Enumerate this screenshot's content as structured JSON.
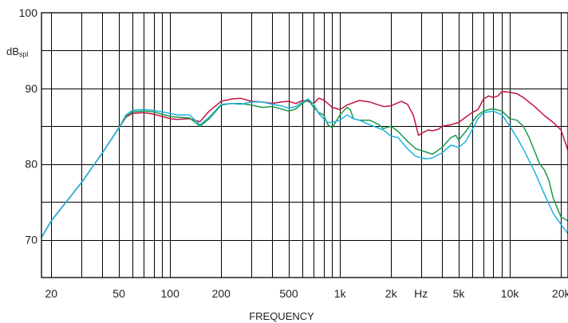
{
  "chart_data": {
    "type": "line",
    "title": "",
    "xlabel": "FREQUENCY",
    "x_scale": "log",
    "xlim": [
      17.5,
      22000
    ],
    "ylim": [
      65,
      100
    ],
    "y_unit": {
      "main": "dB",
      "sub": "spl"
    },
    "grid": true,
    "x_ticks": [
      {
        "value": 20,
        "label": "20"
      },
      {
        "value": 50,
        "label": "50"
      },
      {
        "value": 100,
        "label": "100"
      },
      {
        "value": 200,
        "label": "200"
      },
      {
        "value": 500,
        "label": "500"
      },
      {
        "value": 1000,
        "label": "1k"
      },
      {
        "value": 2000,
        "label": "2k"
      },
      {
        "value": 3000,
        "label": "Hz"
      },
      {
        "value": 5000,
        "label": "5k"
      },
      {
        "value": 10000,
        "label": "10k"
      },
      {
        "value": 20000,
        "label": "20k"
      }
    ],
    "y_ticks": [
      {
        "value": 100,
        "label": "100"
      },
      {
        "value": 90,
        "label": "90"
      },
      {
        "value": 80,
        "label": "80"
      },
      {
        "value": 70,
        "label": "70"
      }
    ],
    "series": [
      {
        "color": "#c0143c",
        "points": [
          [
            17.5,
            70.3
          ],
          [
            20,
            72.5
          ],
          [
            30,
            77.5
          ],
          [
            40,
            81.5
          ],
          [
            50,
            84.8
          ],
          [
            55,
            86.2
          ],
          [
            60,
            86.7
          ],
          [
            70,
            86.8
          ],
          [
            80,
            86.6
          ],
          [
            90,
            86.3
          ],
          [
            100,
            86.0
          ],
          [
            110,
            85.9
          ],
          [
            130,
            86.0
          ],
          [
            150,
            85.6
          ],
          [
            170,
            87.0
          ],
          [
            200,
            88.3
          ],
          [
            230,
            88.6
          ],
          [
            260,
            88.7
          ],
          [
            300,
            88.3
          ],
          [
            350,
            88.2
          ],
          [
            400,
            88.0
          ],
          [
            450,
            88.2
          ],
          [
            500,
            88.3
          ],
          [
            550,
            88.0
          ],
          [
            600,
            88.4
          ],
          [
            650,
            88.3
          ],
          [
            700,
            88.0
          ],
          [
            750,
            88.7
          ],
          [
            800,
            88.5
          ],
          [
            900,
            87.5
          ],
          [
            1000,
            87.2
          ],
          [
            1100,
            87.8
          ],
          [
            1300,
            88.4
          ],
          [
            1500,
            88.2
          ],
          [
            1800,
            87.6
          ],
          [
            2000,
            87.7
          ],
          [
            2300,
            88.3
          ],
          [
            2500,
            87.9
          ],
          [
            2700,
            86.5
          ],
          [
            2900,
            83.8
          ],
          [
            3100,
            84.2
          ],
          [
            3300,
            84.5
          ],
          [
            3500,
            84.4
          ],
          [
            3800,
            84.6
          ],
          [
            4000,
            85.0
          ],
          [
            4500,
            85.2
          ],
          [
            5000,
            85.5
          ],
          [
            5500,
            86.2
          ],
          [
            6000,
            86.8
          ],
          [
            6500,
            87.2
          ],
          [
            7000,
            88.6
          ],
          [
            7500,
            89.0
          ],
          [
            8000,
            88.8
          ],
          [
            8500,
            89.0
          ],
          [
            9000,
            89.6
          ],
          [
            10000,
            89.5
          ],
          [
            11000,
            89.3
          ],
          [
            12000,
            88.8
          ],
          [
            14000,
            87.6
          ],
          [
            16000,
            86.4
          ],
          [
            18000,
            85.5
          ],
          [
            20000,
            84.5
          ],
          [
            22000,
            81.8
          ]
        ]
      },
      {
        "color": "#1a9a4a",
        "points": [
          [
            17.5,
            70.3
          ],
          [
            20,
            72.5
          ],
          [
            30,
            77.5
          ],
          [
            40,
            81.5
          ],
          [
            50,
            84.8
          ],
          [
            55,
            86.3
          ],
          [
            60,
            86.9
          ],
          [
            70,
            87.0
          ],
          [
            80,
            86.9
          ],
          [
            90,
            86.6
          ],
          [
            100,
            86.3
          ],
          [
            110,
            86.2
          ],
          [
            130,
            86.1
          ],
          [
            150,
            85.0
          ],
          [
            170,
            86.0
          ],
          [
            200,
            87.8
          ],
          [
            230,
            88.0
          ],
          [
            260,
            88.0
          ],
          [
            300,
            87.8
          ],
          [
            350,
            87.5
          ],
          [
            400,
            87.6
          ],
          [
            450,
            87.3
          ],
          [
            500,
            87.0
          ],
          [
            550,
            87.3
          ],
          [
            600,
            88.0
          ],
          [
            650,
            88.5
          ],
          [
            700,
            87.5
          ],
          [
            750,
            86.8
          ],
          [
            800,
            86.5
          ],
          [
            850,
            85.2
          ],
          [
            900,
            84.8
          ],
          [
            1000,
            86.5
          ],
          [
            1100,
            87.5
          ],
          [
            1150,
            87.2
          ],
          [
            1200,
            86.0
          ],
          [
            1300,
            85.8
          ],
          [
            1500,
            85.8
          ],
          [
            1700,
            85.2
          ],
          [
            1800,
            84.7
          ],
          [
            2000,
            85.0
          ],
          [
            2200,
            84.3
          ],
          [
            2500,
            83.0
          ],
          [
            2800,
            82.0
          ],
          [
            3200,
            81.6
          ],
          [
            3500,
            81.3
          ],
          [
            4000,
            82.2
          ],
          [
            4500,
            83.5
          ],
          [
            4800,
            83.8
          ],
          [
            5000,
            83.2
          ],
          [
            5500,
            84.3
          ],
          [
            6000,
            85.5
          ],
          [
            6500,
            86.5
          ],
          [
            7000,
            87.0
          ],
          [
            7500,
            87.2
          ],
          [
            8000,
            87.3
          ],
          [
            9000,
            87.0
          ],
          [
            10000,
            86.0
          ],
          [
            11000,
            85.8
          ],
          [
            12000,
            85.0
          ],
          [
            13000,
            83.5
          ],
          [
            15000,
            80.0
          ],
          [
            16000,
            79.2
          ],
          [
            17000,
            77.8
          ],
          [
            18000,
            75.5
          ],
          [
            20000,
            73.0
          ],
          [
            22000,
            72.5
          ]
        ]
      },
      {
        "color": "#1ab4e0",
        "points": [
          [
            17.5,
            70.3
          ],
          [
            20,
            72.5
          ],
          [
            30,
            77.5
          ],
          [
            40,
            81.5
          ],
          [
            50,
            84.8
          ],
          [
            55,
            86.5
          ],
          [
            60,
            87.1
          ],
          [
            70,
            87.2
          ],
          [
            80,
            87.1
          ],
          [
            90,
            86.9
          ],
          [
            100,
            86.7
          ],
          [
            110,
            86.5
          ],
          [
            130,
            86.5
          ],
          [
            150,
            85.2
          ],
          [
            170,
            86.2
          ],
          [
            200,
            87.9
          ],
          [
            230,
            88.0
          ],
          [
            260,
            87.9
          ],
          [
            300,
            88.2
          ],
          [
            350,
            88.2
          ],
          [
            400,
            87.9
          ],
          [
            450,
            87.7
          ],
          [
            500,
            87.4
          ],
          [
            550,
            87.6
          ],
          [
            600,
            88.2
          ],
          [
            650,
            88.6
          ],
          [
            700,
            87.9
          ],
          [
            750,
            86.7
          ],
          [
            800,
            86.0
          ],
          [
            850,
            85.5
          ],
          [
            900,
            85.5
          ],
          [
            1000,
            85.8
          ],
          [
            1100,
            86.5
          ],
          [
            1200,
            86.0
          ],
          [
            1300,
            85.8
          ],
          [
            1500,
            85.2
          ],
          [
            1800,
            84.5
          ],
          [
            2000,
            83.7
          ],
          [
            2200,
            83.5
          ],
          [
            2500,
            82.0
          ],
          [
            2800,
            81.0
          ],
          [
            3200,
            80.7
          ],
          [
            3500,
            80.8
          ],
          [
            4000,
            81.5
          ],
          [
            4500,
            82.5
          ],
          [
            5000,
            82.2
          ],
          [
            5500,
            83.0
          ],
          [
            6000,
            84.5
          ],
          [
            6500,
            86.0
          ],
          [
            7000,
            86.8
          ],
          [
            8000,
            87.0
          ],
          [
            9000,
            86.5
          ],
          [
            10000,
            85.0
          ],
          [
            11000,
            83.5
          ],
          [
            12000,
            82.0
          ],
          [
            14000,
            79.0
          ],
          [
            16000,
            76.0
          ],
          [
            18000,
            73.5
          ],
          [
            20000,
            72.0
          ],
          [
            22000,
            70.8
          ]
        ]
      }
    ]
  }
}
